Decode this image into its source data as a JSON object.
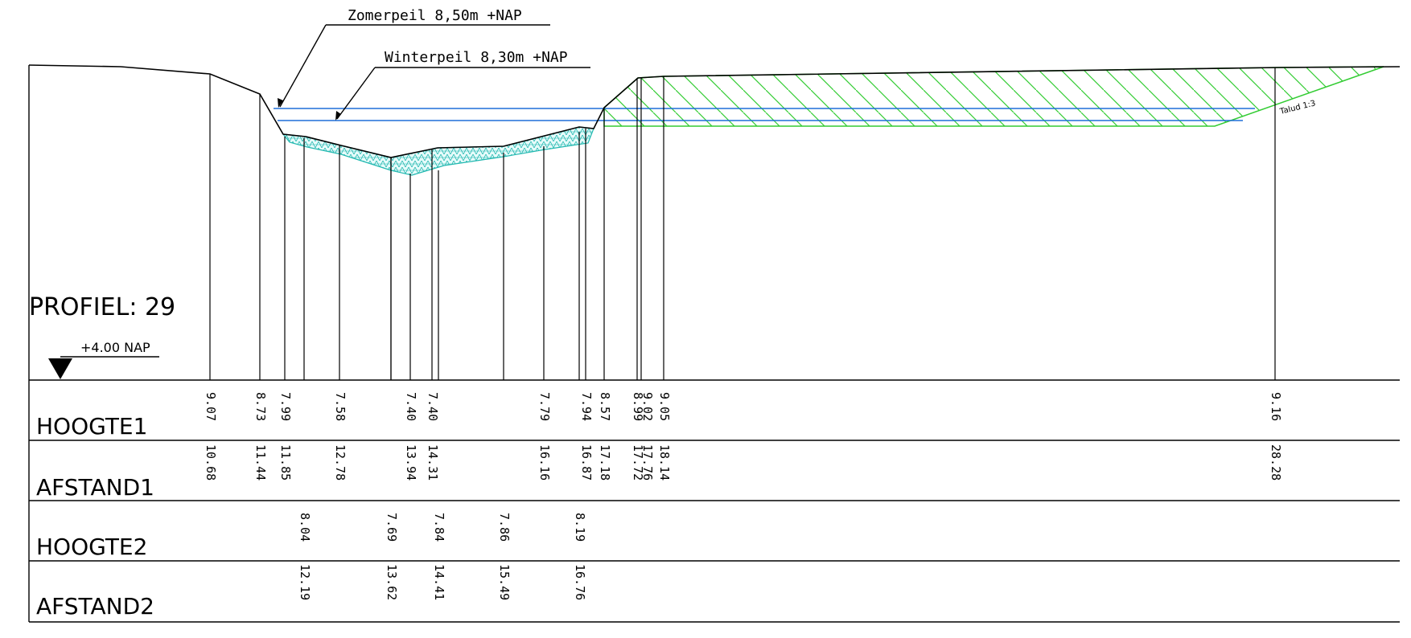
{
  "title": "PROFIEL: 29",
  "reference": "+4.00 NAP",
  "water_levels": [
    {
      "label": "Zomerpeil 8,50m +NAP",
      "level": 8.5
    },
    {
      "label": "Winterpeil 8,30m +NAP",
      "level": 8.3
    }
  ],
  "slope_label": "Talud 1:3",
  "rows": {
    "hoogte1": "HOOGTE1",
    "afstand1": "AFSTAND1",
    "hoogte2": "HOOGTE2",
    "afstand2": "AFSTAND2"
  },
  "chart_data": {
    "type": "line",
    "title": "PROFIEL: 29",
    "xlabel": "",
    "ylabel": "",
    "reference_level": 4.0,
    "ground_profile": {
      "afstand": [
        "10.68",
        "11.44",
        "11.85",
        "12.78",
        "13.94",
        "14.31",
        "16.16",
        "16.87",
        "17.18",
        "17.72",
        "17.76",
        "18.14",
        "28.28"
      ],
      "hoogte": [
        "9.07",
        "8.73",
        "7.99",
        "7.58",
        "7.40",
        "7.40",
        "7.79",
        "7.94",
        "8.57",
        "8.99",
        "9.02",
        "9.05",
        "9.16"
      ]
    },
    "bottom_profile": {
      "afstand": [
        "12.19",
        "13.62",
        "14.41",
        "15.49",
        "16.76"
      ],
      "hoogte": [
        "8.04",
        "7.69",
        "7.84",
        "7.86",
        "8.19"
      ]
    },
    "colors": {
      "water": "#1e6fd9",
      "sediment": "#22b8b0",
      "fill": "#33cc33",
      "line": "#000000"
    }
  }
}
